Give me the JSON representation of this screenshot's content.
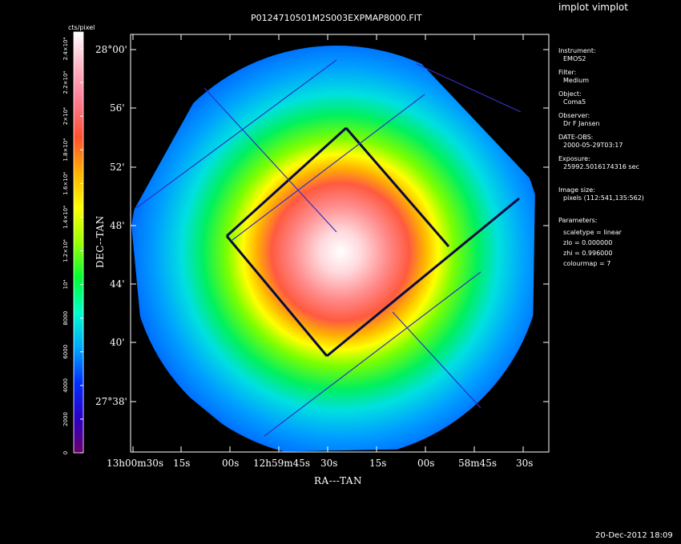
{
  "window_title": "implot vimplot",
  "file_title": "P0124710501M2S003EXPMAP8000.FIT",
  "colorbar": {
    "unit": "cts/pixel",
    "labels": [
      "0",
      "2000",
      "4000",
      "6000",
      "8000",
      "10⁴",
      "1.2×10⁴",
      "1.4×10⁴",
      "1.6×10⁴",
      "1.8×10⁴",
      "2×10⁴",
      "2.2×10⁴",
      "2.4×10⁴"
    ],
    "colormap": [
      "#6a006a",
      "#2b00c8",
      "#0030ff",
      "#00a8ff",
      "#00ffcc",
      "#00ff30",
      "#9aff00",
      "#ffff00",
      "#ffb000",
      "#ff5030",
      "#ff7a90",
      "#ffb5c5",
      "#ffffff"
    ]
  },
  "axes": {
    "xlabel": "RA---TAN",
    "ylabel": "DEC--TAN",
    "yticks": [
      "28°00'",
      "56'",
      "52'",
      "48'",
      "44'",
      "40'",
      "27°38'"
    ],
    "xticks": [
      "13h00m30s",
      "15s",
      "00s",
      "12h59m45s",
      "30s",
      "15s",
      "00s",
      "58m45s",
      "30s"
    ]
  },
  "info_panel": [
    {
      "label": "Instrument:",
      "value": "EMOS2"
    },
    {
      "label": "Filter:",
      "value": "Medium"
    },
    {
      "label": "Object:",
      "value": "Coma5"
    },
    {
      "label": "Observer:",
      "value": "Dr F Jansen"
    },
    {
      "label": "DATE-OBS:",
      "value": "2000-05-29T03:17"
    },
    {
      "label": "Exposure:",
      "value": "25992.5016174316 sec"
    },
    {
      "label": "Image size:",
      "value": "pixels (112:541,135:562)"
    }
  ],
  "parameters": {
    "label": "Parameters:",
    "lines": [
      "scaletype = linear",
      "zlo = 0.000000",
      "zhi = 0.996000",
      "colourmap =   7"
    ]
  },
  "timestamp": "20-Dec-2012 18:09"
}
